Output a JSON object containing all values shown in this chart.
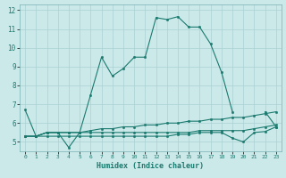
{
  "xlabel": "Humidex (Indice chaleur)",
  "bg_color": "#cce9ea",
  "line_color": "#1a7a6e",
  "grid_color": "#aad0d2",
  "xlim": [
    -0.5,
    23.5
  ],
  "ylim": [
    4.5,
    12.3
  ],
  "xticks": [
    0,
    1,
    2,
    3,
    4,
    5,
    6,
    7,
    8,
    9,
    10,
    11,
    12,
    13,
    14,
    15,
    16,
    17,
    18,
    19,
    20,
    21,
    22,
    23
  ],
  "yticks": [
    5,
    6,
    7,
    8,
    9,
    10,
    11,
    12
  ],
  "series": [
    [
      6.7,
      5.3,
      5.5,
      5.5,
      4.7,
      5.5,
      7.5,
      9.5,
      8.5,
      8.9,
      9.5,
      9.5,
      11.6,
      11.5,
      11.65,
      11.1,
      11.1,
      10.2,
      8.7,
      6.6,
      null,
      null,
      null,
      null
    ],
    [
      null,
      null,
      null,
      null,
      null,
      null,
      null,
      null,
      null,
      null,
      null,
      null,
      null,
      null,
      null,
      null,
      null,
      null,
      null,
      null,
      null,
      null,
      6.6,
      5.8
    ],
    [
      5.3,
      5.3,
      5.5,
      5.5,
      5.5,
      5.5,
      5.6,
      5.7,
      5.7,
      5.8,
      5.8,
      5.9,
      5.9,
      6.0,
      6.0,
      6.1,
      6.1,
      6.2,
      6.2,
      6.3,
      6.3,
      6.4,
      6.5,
      6.6
    ],
    [
      5.3,
      5.3,
      5.3,
      5.3,
      5.3,
      5.3,
      5.3,
      5.3,
      5.3,
      5.3,
      5.3,
      5.3,
      5.3,
      5.3,
      5.4,
      5.4,
      5.5,
      5.5,
      5.5,
      5.2,
      5.0,
      5.5,
      5.55,
      5.8
    ],
    [
      5.3,
      5.3,
      5.5,
      5.5,
      5.5,
      5.5,
      5.5,
      5.5,
      5.5,
      5.5,
      5.5,
      5.5,
      5.5,
      5.5,
      5.5,
      5.5,
      5.6,
      5.6,
      5.6,
      5.6,
      5.6,
      5.7,
      5.8,
      5.9
    ]
  ]
}
